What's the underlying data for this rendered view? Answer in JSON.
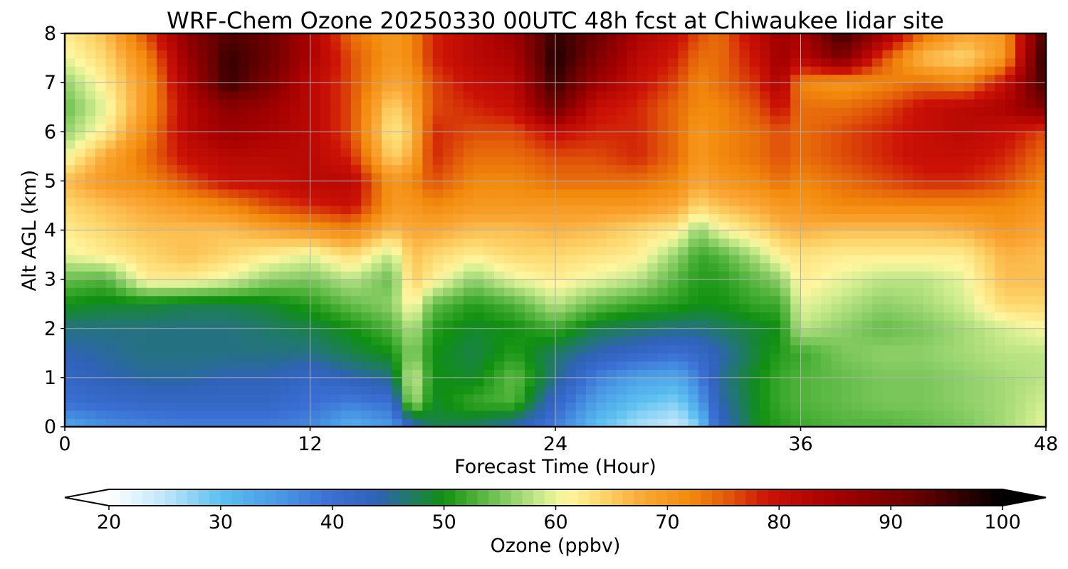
{
  "chart_data": {
    "type": "heatmap",
    "title": "WRF-Chem Ozone  20250330 00UTC 48h fcst at Chiwaukee lidar site",
    "xlabel": "Forecast Time (Hour)",
    "ylabel": "Alt AGL (km)",
    "xlim": [
      0,
      48
    ],
    "ylim": [
      0,
      8
    ],
    "x_ticks": [
      "0",
      "12",
      "24",
      "36",
      "48"
    ],
    "y_ticks": [
      "0",
      "1",
      "2",
      "3",
      "4",
      "5",
      "6",
      "7",
      "8"
    ],
    "grid": true,
    "x_hours": [
      0,
      2,
      4,
      6,
      8,
      10,
      12,
      14,
      16,
      17,
      18,
      20,
      22,
      24,
      26,
      28,
      30,
      31,
      32,
      34,
      35,
      36,
      38,
      40,
      42,
      44,
      46,
      48
    ],
    "altitudes_km": [
      0,
      0.5,
      1,
      1.5,
      2,
      2.5,
      3,
      3.5,
      4,
      4.5,
      5,
      5.5,
      6,
      6.5,
      7,
      7.5,
      8
    ],
    "ozone_ppbv_by_altitude": [
      [
        33,
        36,
        37,
        38,
        38,
        38,
        37,
        32,
        35,
        42,
        48,
        47,
        44,
        38,
        30,
        26,
        24,
        28,
        42,
        50,
        51,
        52,
        53,
        53,
        54,
        55,
        57,
        60
      ],
      [
        40,
        41,
        42,
        42,
        42,
        42,
        40,
        38,
        40,
        58,
        49,
        52,
        53,
        42,
        34,
        30,
        28,
        34,
        44,
        50,
        52,
        53,
        54,
        55,
        55,
        56,
        57,
        59
      ],
      [
        42,
        44,
        45,
        45,
        44,
        44,
        42,
        44,
        46,
        60,
        50,
        49,
        54,
        46,
        38,
        34,
        33,
        38,
        45,
        50,
        52,
        53,
        54,
        55,
        55,
        56,
        57,
        58
      ],
      [
        44,
        45,
        46,
        46,
        46,
        46,
        46,
        48,
        50,
        56,
        50,
        48,
        51,
        47,
        44,
        42,
        40,
        42,
        44,
        49,
        51,
        52,
        55,
        56,
        56,
        57,
        58,
        58
      ],
      [
        46,
        46,
        46,
        46,
        46,
        47,
        48,
        50,
        53,
        58,
        51,
        49,
        50,
        52,
        48,
        47,
        46,
        46,
        47,
        49,
        50,
        58,
        56,
        54,
        55,
        57,
        59,
        61
      ],
      [
        50,
        49,
        49,
        48,
        48,
        49,
        51,
        54,
        56,
        62,
        54,
        51,
        53,
        58,
        54,
        52,
        51,
        50,
        50,
        52,
        52,
        60,
        58,
        56,
        57,
        59,
        64,
        64
      ],
      [
        54,
        53,
        62,
        62,
        60,
        56,
        55,
        58,
        54,
        65,
        62,
        56,
        60,
        62,
        60,
        58,
        53,
        51,
        51,
        54,
        56,
        62,
        60,
        58,
        58,
        60,
        66,
        66
      ],
      [
        60,
        62,
        64,
        66,
        64,
        62,
        60,
        64,
        58,
        66,
        64,
        62,
        64,
        64,
        63,
        62,
        56,
        52,
        53,
        58,
        62,
        63,
        62,
        62,
        62,
        62,
        67,
        66
      ],
      [
        62,
        64,
        66,
        66,
        66,
        68,
        70,
        72,
        66,
        68,
        68,
        66,
        66,
        67,
        66,
        64,
        62,
        56,
        60,
        64,
        66,
        67,
        66,
        66,
        66,
        67,
        70,
        68
      ],
      [
        64,
        66,
        68,
        70,
        72,
        76,
        78,
        80,
        70,
        70,
        72,
        70,
        70,
        70,
        70,
        70,
        68,
        64,
        66,
        68,
        70,
        70,
        72,
        72,
        72,
        72,
        72,
        70
      ],
      [
        66,
        70,
        72,
        76,
        80,
        80,
        82,
        82,
        70,
        72,
        76,
        72,
        72,
        74,
        74,
        74,
        72,
        68,
        70,
        72,
        74,
        72,
        74,
        76,
        78,
        78,
        76,
        72
      ],
      [
        60,
        68,
        74,
        80,
        82,
        82,
        82,
        78,
        64,
        68,
        78,
        74,
        74,
        76,
        76,
        78,
        74,
        70,
        72,
        74,
        76,
        74,
        76,
        78,
        80,
        80,
        78,
        74
      ],
      [
        56,
        62,
        72,
        82,
        86,
        84,
        82,
        76,
        62,
        66,
        78,
        76,
        76,
        80,
        78,
        78,
        74,
        70,
        72,
        74,
        76,
        74,
        76,
        78,
        80,
        82,
        80,
        76
      ],
      [
        54,
        60,
        70,
        82,
        88,
        86,
        82,
        76,
        64,
        68,
        76,
        78,
        80,
        92,
        80,
        78,
        74,
        72,
        72,
        76,
        80,
        74,
        74,
        76,
        80,
        82,
        84,
        90
      ],
      [
        56,
        62,
        70,
        84,
        96,
        90,
        82,
        76,
        68,
        70,
        76,
        80,
        82,
        96,
        86,
        80,
        76,
        72,
        74,
        78,
        84,
        72,
        70,
        72,
        74,
        72,
        80,
        96
      ],
      [
        60,
        64,
        72,
        86,
        96,
        92,
        84,
        76,
        70,
        72,
        78,
        82,
        84,
        98,
        90,
        82,
        78,
        74,
        74,
        80,
        86,
        82,
        90,
        76,
        66,
        64,
        70,
        98
      ],
      [
        62,
        66,
        76,
        88,
        94,
        92,
        84,
        74,
        70,
        72,
        78,
        82,
        86,
        96,
        92,
        84,
        80,
        76,
        74,
        82,
        86,
        84,
        96,
        86,
        74,
        68,
        70,
        96
      ]
    ],
    "colorbar": {
      "label": "Ozone  (ppbv)",
      "ticks": [
        "20",
        "30",
        "40",
        "50",
        "60",
        "70",
        "80",
        "90",
        "100"
      ],
      "range": [
        20,
        100
      ],
      "extend": "both",
      "color_stops": [
        {
          "value": 20,
          "color": "#ffffff"
        },
        {
          "value": 25,
          "color": "#bfe6fb"
        },
        {
          "value": 30,
          "color": "#5cc0f0"
        },
        {
          "value": 35,
          "color": "#4a9ae6"
        },
        {
          "value": 40,
          "color": "#3a6ed2"
        },
        {
          "value": 44,
          "color": "#2f62b8"
        },
        {
          "value": 47,
          "color": "#1f7a66"
        },
        {
          "value": 50,
          "color": "#109010"
        },
        {
          "value": 53,
          "color": "#4fb33a"
        },
        {
          "value": 56,
          "color": "#8fd06a"
        },
        {
          "value": 59,
          "color": "#d2ee90"
        },
        {
          "value": 61,
          "color": "#fff6a0"
        },
        {
          "value": 64,
          "color": "#fdd86e"
        },
        {
          "value": 68,
          "color": "#faa634"
        },
        {
          "value": 72,
          "color": "#f28a0c"
        },
        {
          "value": 75,
          "color": "#e4600a"
        },
        {
          "value": 79,
          "color": "#cc1206"
        },
        {
          "value": 85,
          "color": "#a50000"
        },
        {
          "value": 92,
          "color": "#6c0000"
        },
        {
          "value": 100,
          "color": "#000000"
        }
      ]
    }
  }
}
